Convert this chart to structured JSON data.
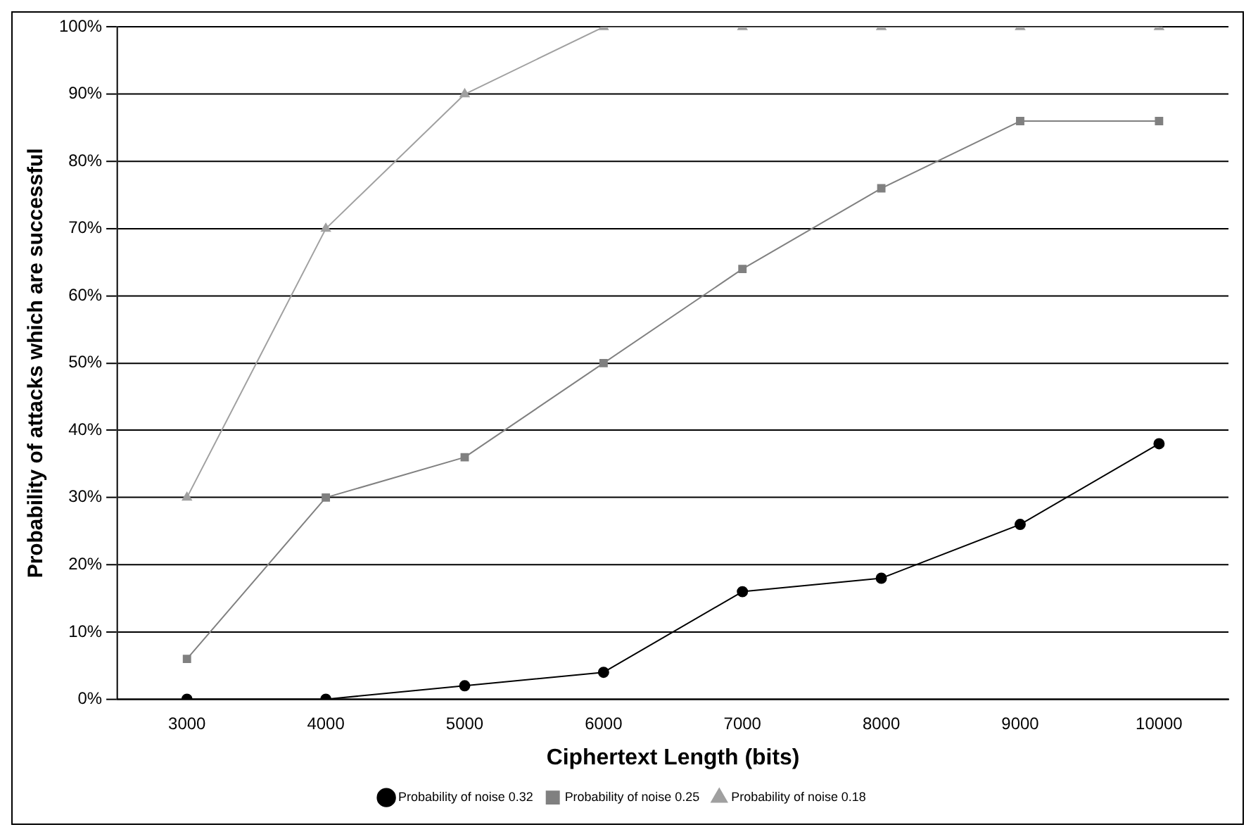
{
  "chart_data": {
    "type": "line",
    "xlabel": "Ciphertext Length (bits)",
    "ylabel": "Probability of attacks which are successful",
    "categories": [
      "3000",
      "4000",
      "5000",
      "6000",
      "7000",
      "8000",
      "9000",
      "10000"
    ],
    "series": [
      {
        "name": "Probability of noise 0.32",
        "color": "#000000",
        "marker": "circle",
        "values": [
          0,
          0,
          2,
          4,
          16,
          18,
          26,
          38
        ]
      },
      {
        "name": "Probability of noise 0.25",
        "color": "#808080",
        "marker": "square",
        "values": [
          6,
          30,
          36,
          50,
          64,
          76,
          86,
          86
        ]
      },
      {
        "name": "Probability of noise 0.18",
        "color": "#a0a0a0",
        "marker": "triangle",
        "values": [
          30,
          70,
          90,
          100,
          100,
          100,
          100,
          100
        ]
      }
    ],
    "ylim": [
      0,
      100
    ],
    "yticks": [
      {
        "value": 0,
        "label": "0%"
      },
      {
        "value": 10,
        "label": "10%"
      },
      {
        "value": 20,
        "label": "20%"
      },
      {
        "value": 30,
        "label": "30%"
      },
      {
        "value": 40,
        "label": "40%"
      },
      {
        "value": 50,
        "label": "50%"
      },
      {
        "value": 60,
        "label": "60%"
      },
      {
        "value": 70,
        "label": "70%"
      },
      {
        "value": 80,
        "label": "80%"
      },
      {
        "value": 90,
        "label": "90%"
      },
      {
        "value": 100,
        "label": "100%"
      }
    ],
    "grid": "y",
    "legend": "bottom",
    "line_style": "solid"
  }
}
